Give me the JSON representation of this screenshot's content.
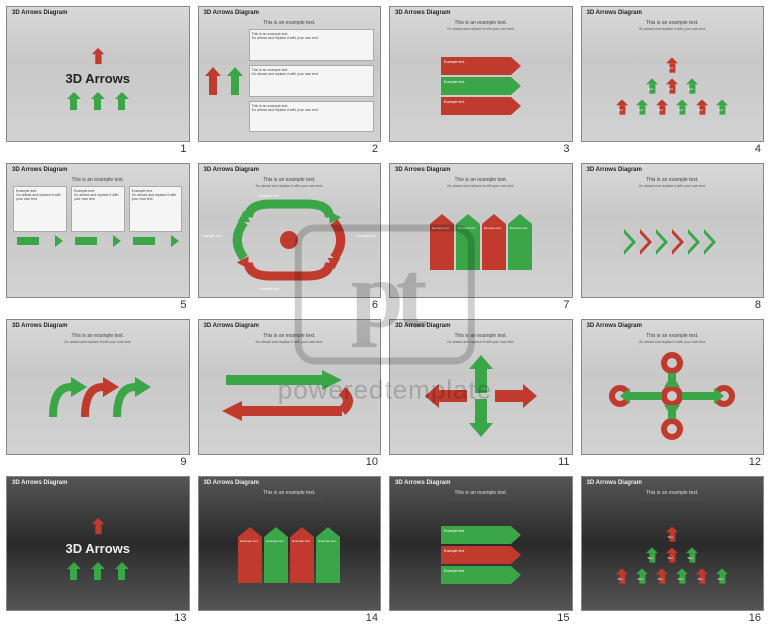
{
  "colors": {
    "green": "#3aa648",
    "red": "#c13a2e",
    "light_bg": "#cfcfcf",
    "dark_bg": "#3a3a3a",
    "text_dark": "#222222",
    "text_light": "#eeeeee",
    "box_bg": "#f5f5f5"
  },
  "watermark": {
    "logo_text": "pt",
    "brand_text": "poweredtemplate"
  },
  "common": {
    "slide_title": "3D Arrows Diagram",
    "subtitle": "This is an example text.",
    "description": "Go ahead and replace it with your own text.",
    "example_text": "Example text.",
    "text_label": "Text."
  },
  "slides": [
    {
      "n": 1,
      "theme": "light",
      "variant": "title",
      "big_title": "3D Arrows"
    },
    {
      "n": 2,
      "theme": "light",
      "variant": "two_up_boxes"
    },
    {
      "n": 3,
      "theme": "light",
      "variant": "block_right_arrows"
    },
    {
      "n": 4,
      "theme": "light",
      "variant": "pyramid_up"
    },
    {
      "n": 5,
      "theme": "light",
      "variant": "three_right_cols"
    },
    {
      "n": 6,
      "theme": "light",
      "variant": "cycle"
    },
    {
      "n": 7,
      "theme": "light",
      "variant": "four_up_blocks"
    },
    {
      "n": 8,
      "theme": "light",
      "variant": "chevrons"
    },
    {
      "n": 9,
      "theme": "light",
      "variant": "three_bent"
    },
    {
      "n": 10,
      "theme": "light",
      "variant": "uturn"
    },
    {
      "n": 11,
      "theme": "light",
      "variant": "cross_arrows"
    },
    {
      "n": 12,
      "theme": "light",
      "variant": "torus_cross"
    },
    {
      "n": 13,
      "theme": "dark",
      "variant": "title",
      "big_title": "3D Arrows"
    },
    {
      "n": 14,
      "theme": "dark",
      "variant": "four_up_blocks"
    },
    {
      "n": 15,
      "theme": "dark",
      "variant": "block_right_arrows"
    },
    {
      "n": 16,
      "theme": "dark",
      "variant": "pyramid_up"
    }
  ],
  "pyramid_colors": [
    "red",
    "green",
    "red",
    "green",
    "red",
    "green",
    "red",
    "green",
    "red",
    "green"
  ],
  "chevron_colors": [
    "green",
    "red",
    "green",
    "red",
    "green",
    "green"
  ],
  "three_bent_colors": [
    "green",
    "red",
    "green"
  ],
  "four_up_colors": [
    "red",
    "green",
    "red",
    "green"
  ],
  "block_right_colors": [
    "red",
    "green",
    "red"
  ],
  "block_right_dark_colors": [
    "green",
    "red",
    "green"
  ],
  "cross_arrow_colors": {
    "up": "green",
    "down": "green",
    "left": "red",
    "right": "red"
  },
  "torus_cross": {
    "ring_color": "red",
    "arrow_color": "green"
  }
}
